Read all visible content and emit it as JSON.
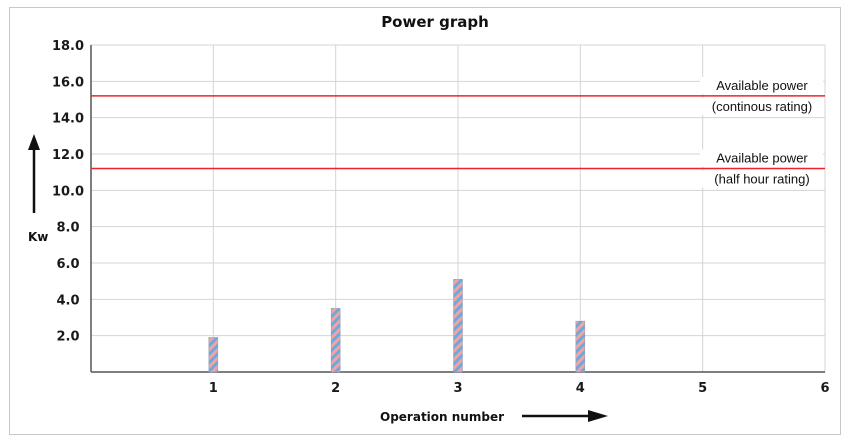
{
  "chart_data": {
    "type": "bar",
    "title": "Power graph",
    "xlabel": "Operation number",
    "ylabel": "Kw",
    "x_ticks": [
      "1",
      "2",
      "3",
      "4",
      "5",
      "6"
    ],
    "y_ticks": [
      "2.0",
      "4.0",
      "6.0",
      "8.0",
      "10.0",
      "12.0",
      "14.0",
      "16.0",
      "18.0"
    ],
    "xlim": [
      0,
      6
    ],
    "ylim": [
      0,
      18
    ],
    "grid": true,
    "series": [
      {
        "x": [
          1,
          2,
          3,
          4
        ],
        "values": [
          1.9,
          3.5,
          5.1,
          2.8
        ]
      }
    ],
    "reference_lines": [
      {
        "y": 15.2,
        "label_line1": "Available power",
        "label_line2": "(continous rating)",
        "color": "#e8262a"
      },
      {
        "y": 11.2,
        "label_line1": "Available power",
        "label_line2": "(half hour rating)",
        "color": "#e8262a"
      }
    ],
    "colors": {
      "bar_stripe_a": "#6fa9dc",
      "bar_stripe_b": "#f2a3a3",
      "grid": "#d4d4d4",
      "axis": "#555555"
    }
  }
}
